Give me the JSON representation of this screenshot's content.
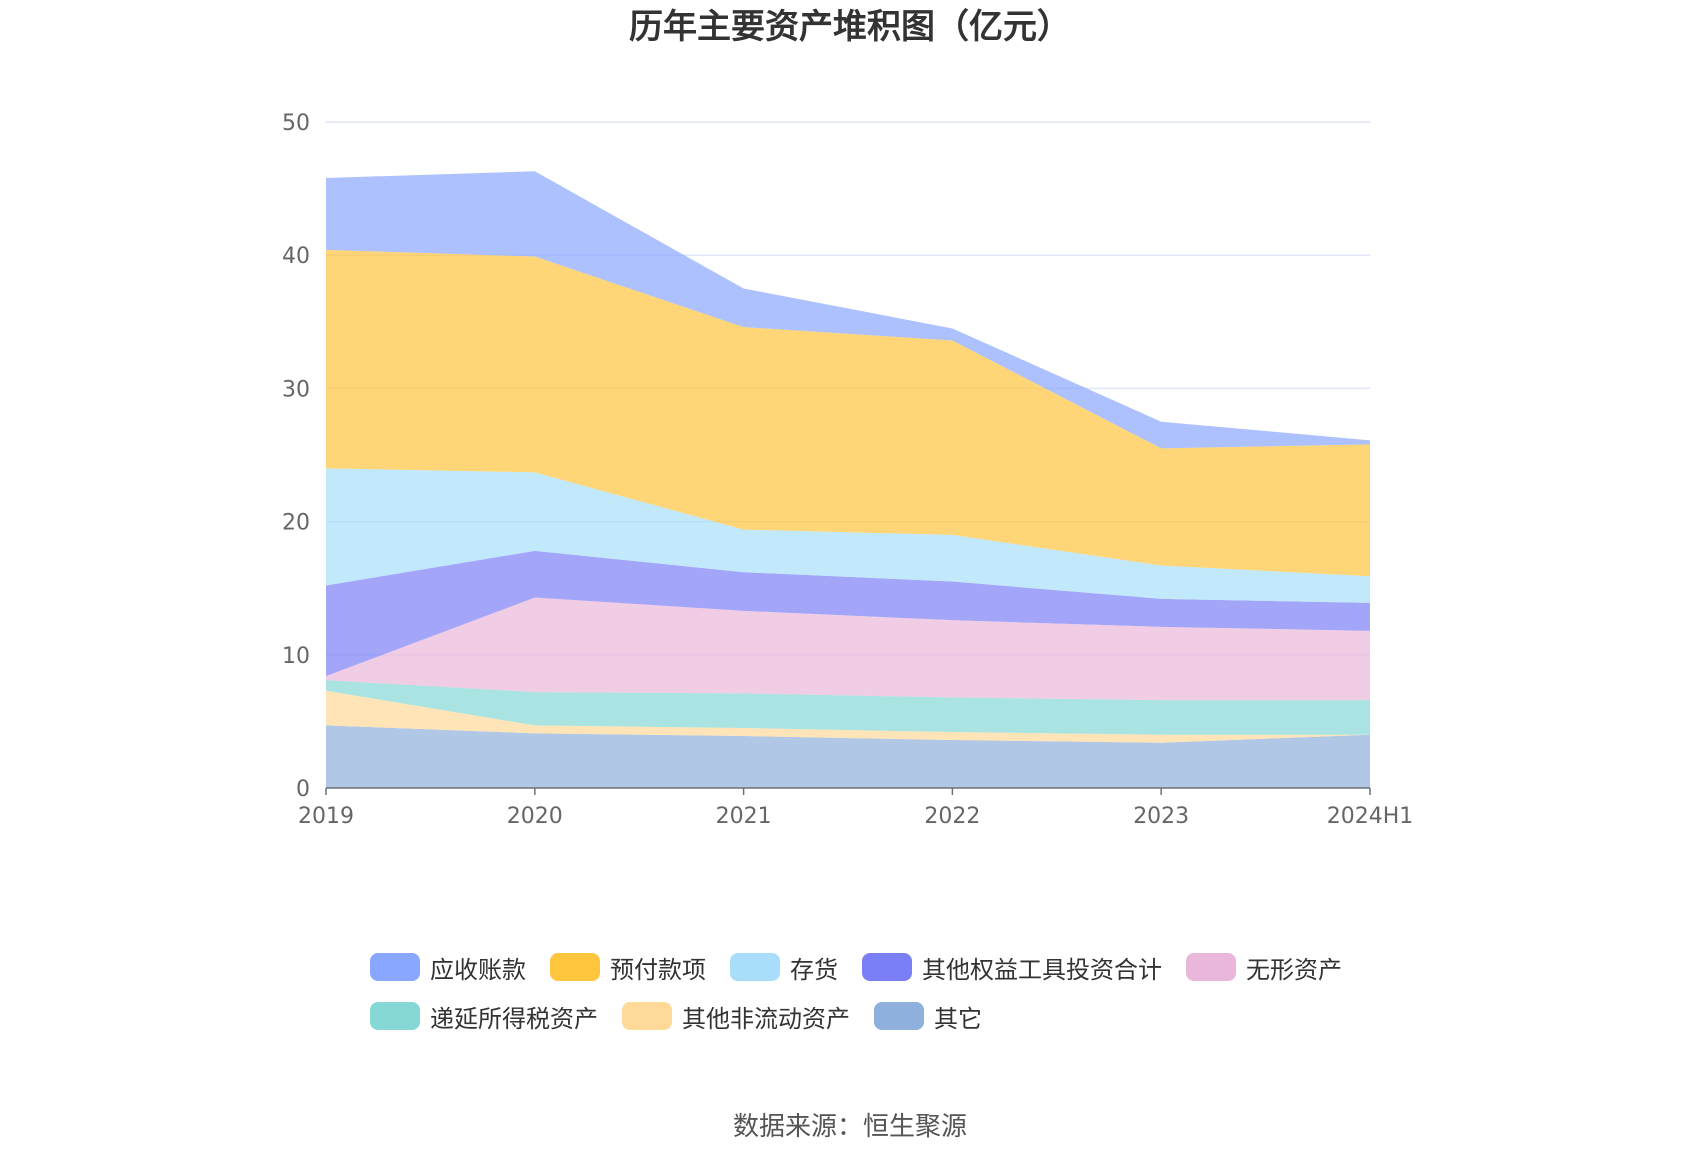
{
  "chart_data": {
    "type": "area",
    "stacked": true,
    "title": "历年主要资产堆积图（亿元）",
    "source": "数据来源：恒生聚源",
    "categories": [
      "2019",
      "2020",
      "2021",
      "2022",
      "2023",
      "2024H1"
    ],
    "ylim": [
      0,
      50
    ],
    "yticks": [
      "0",
      "10",
      "20",
      "30",
      "40",
      "50"
    ],
    "grid": true,
    "legend_position": "bottom",
    "series": [
      {
        "name": "其它",
        "color": "#8fb0dc",
        "values": [
          4.7,
          4.1,
          3.9,
          3.6,
          3.4,
          4.0
        ]
      },
      {
        "name": "其他非流动资产",
        "color": "#ffd998",
        "values": [
          2.6,
          0.6,
          0.6,
          0.6,
          0.6,
          0.0
        ]
      },
      {
        "name": "递延所得税资产",
        "color": "#86d8d6",
        "values": [
          0.8,
          2.5,
          2.6,
          2.6,
          2.6,
          2.6
        ]
      },
      {
        "name": "无形资产",
        "color": "#e9b7da",
        "values": [
          0.3,
          7.1,
          6.2,
          5.8,
          5.5,
          5.2
        ]
      },
      {
        "name": "其他权益工具投资合计",
        "color": "#7b7ff5",
        "values": [
          6.8,
          3.5,
          2.9,
          2.9,
          2.1,
          2.1
        ]
      },
      {
        "name": "存货",
        "color": "#a8def9",
        "values": [
          8.8,
          5.9,
          3.2,
          3.5,
          2.5,
          2.0
        ]
      },
      {
        "name": "预付款项",
        "color": "#ffc53d",
        "values": [
          16.4,
          16.2,
          15.2,
          14.6,
          8.8,
          9.9
        ]
      },
      {
        "name": "应收账款",
        "color": "#8aa7ff",
        "values": [
          5.4,
          6.4,
          2.9,
          0.9,
          2.0,
          0.3
        ]
      }
    ],
    "legend_rows": [
      [
        "应收账款",
        "预付款项",
        "存货",
        "其他权益工具投资合计",
        "无形资产"
      ],
      [
        "递延所得税资产",
        "其他非流动资产",
        "其它"
      ]
    ]
  }
}
